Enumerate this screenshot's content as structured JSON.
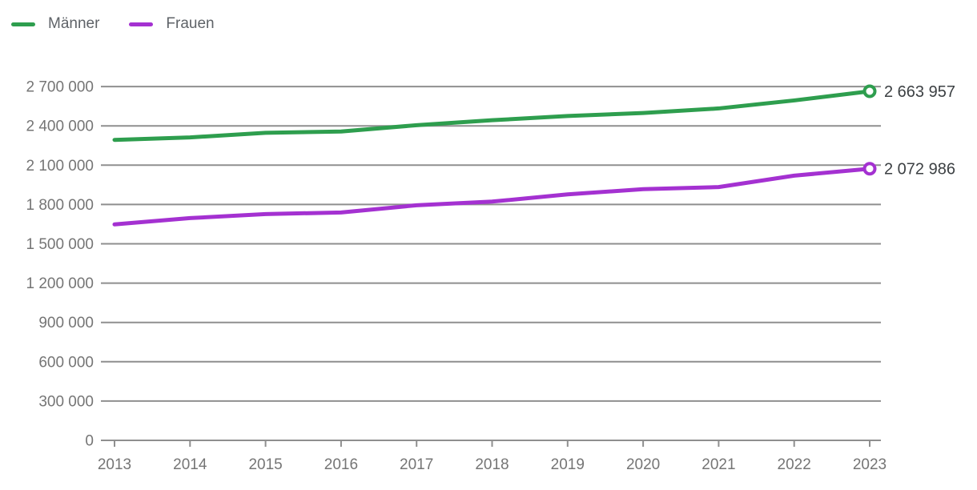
{
  "chart_data": {
    "type": "line",
    "title": "",
    "xlabel": "",
    "ylabel": "",
    "x": [
      2013,
      2014,
      2015,
      2016,
      2017,
      2018,
      2019,
      2020,
      2021,
      2022,
      2023
    ],
    "xtick_labels": [
      "2013",
      "2014",
      "2015",
      "2016",
      "2017",
      "2018",
      "2019",
      "2020",
      "2021",
      "2022",
      "2023"
    ],
    "series": [
      {
        "name": "Männer",
        "color": "#2e9e4e",
        "values": [
          2293000,
          2312000,
          2347000,
          2357000,
          2405000,
          2443000,
          2475000,
          2498000,
          2533000,
          2594000,
          2663957
        ],
        "end_label": "2 663 957"
      },
      {
        "name": "Frauen",
        "color": "#a431d1",
        "values": [
          1648000,
          1696000,
          1727000,
          1739000,
          1794000,
          1822000,
          1877000,
          1917000,
          1933000,
          2020000,
          2072986
        ],
        "end_label": "2 072 986"
      }
    ],
    "ylim": [
      0,
      2700000
    ],
    "ytick_interval": 300000,
    "ytick_labels": [
      "0",
      "300 000",
      "600 000",
      "900 000",
      "1 200 000",
      "1 500 000",
      "1 800 000",
      "2 100 000",
      "2 400 000",
      "2 700 000"
    ],
    "grid": "horizontal",
    "legend_position": "top-left"
  },
  "colors": {
    "background": "#ffffff",
    "gridline": "#8f8f8f",
    "tick_label": "#757575",
    "end_value_label": "#3c4043",
    "legend_label": "#5f6368"
  }
}
